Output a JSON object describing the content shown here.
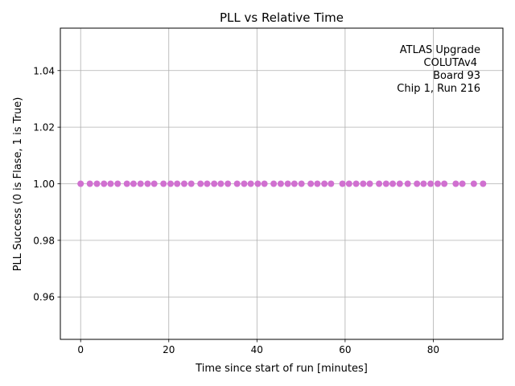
{
  "chart_data": {
    "type": "scatter",
    "title": "PLL vs Relative Time",
    "xlabel": "Time since start of run [minutes]",
    "ylabel": "PLL Success (0 is Flase, 1 is True)",
    "xlim": [
      -4.6,
      95.8
    ],
    "ylim": [
      0.945,
      1.055
    ],
    "xticks": [
      0,
      20,
      40,
      60,
      80
    ],
    "yticks": [
      0.96,
      0.98,
      1.0,
      1.02,
      1.04
    ],
    "ytick_labels": [
      "0.96",
      "0.98",
      "1.00",
      "1.02",
      "1.04"
    ],
    "grid": true,
    "marker_color": "#d070d0",
    "annotation": [
      "ATLAS Upgrade",
      "COLUTAv4",
      "Board 93",
      "Chip 1, Run 216"
    ],
    "points": {
      "x": [
        0,
        2.1,
        3.7,
        5.3,
        6.8,
        8.4,
        10.5,
        12.0,
        13.6,
        15.2,
        16.7,
        18.8,
        20.4,
        21.9,
        23.5,
        25.1,
        27.2,
        28.7,
        30.3,
        31.8,
        33.4,
        35.5,
        37.1,
        38.6,
        40.2,
        41.7,
        43.8,
        45.4,
        47.0,
        48.5,
        50.1,
        52.2,
        53.7,
        55.3,
        56.8,
        59.4,
        60.9,
        62.5,
        64.1,
        65.6,
        67.7,
        69.3,
        70.8,
        72.4,
        74.2,
        76.3,
        77.8,
        79.4,
        81.0,
        82.5,
        85.1,
        86.6,
        89.2,
        91.3
      ],
      "y": [
        1,
        1,
        1,
        1,
        1,
        1,
        1,
        1,
        1,
        1,
        1,
        1,
        1,
        1,
        1,
        1,
        1,
        1,
        1,
        1,
        1,
        1,
        1,
        1,
        1,
        1,
        1,
        1,
        1,
        1,
        1,
        1,
        1,
        1,
        1,
        1,
        1,
        1,
        1,
        1,
        1,
        1,
        1,
        1,
        1,
        1,
        1,
        1,
        1,
        1,
        1,
        1,
        1,
        1
      ]
    }
  }
}
